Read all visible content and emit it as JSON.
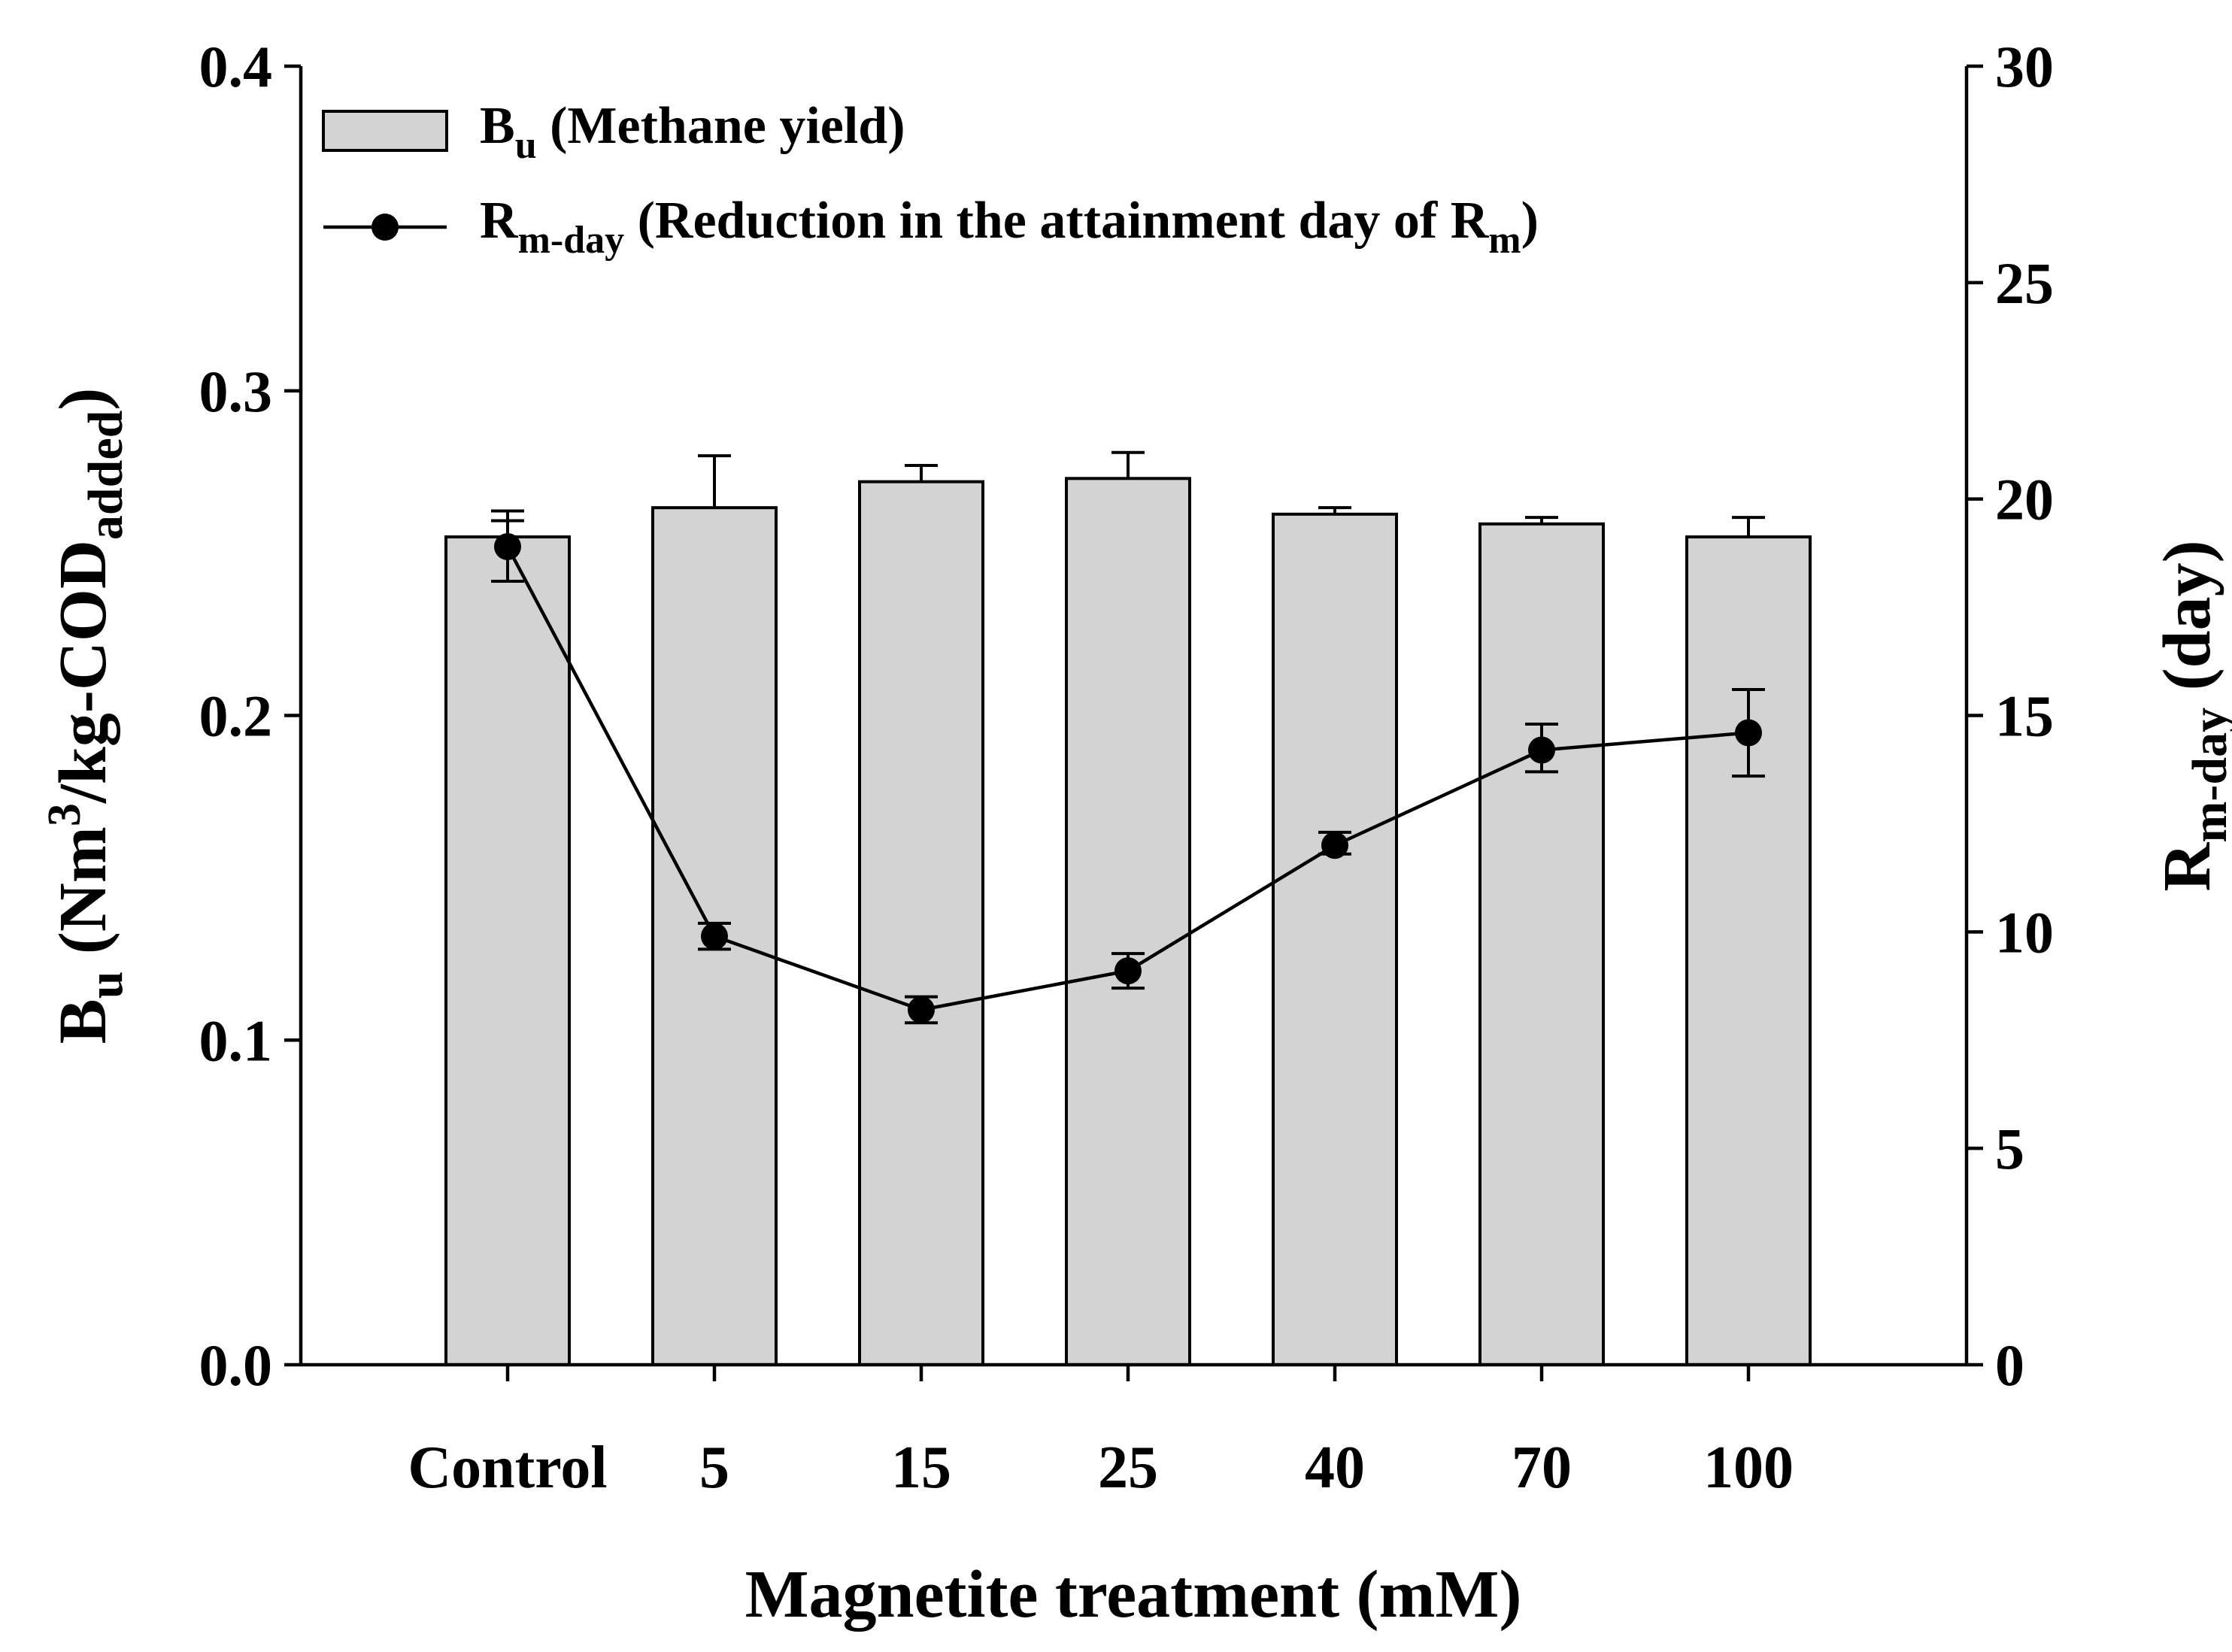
{
  "chart_data": {
    "type": "bar",
    "categories": [
      "Control",
      "5",
      "15",
      "25",
      "40",
      "70",
      "100"
    ],
    "xlabel": "Magnetite treatment (mM)",
    "ylabel": {
      "base": "B",
      "base_sub": "u",
      "pre": " (Nm",
      "sup": "3",
      "mid": "/kg-COD",
      "sub": "added",
      "post": ")"
    },
    "y2label": {
      "base": "R",
      "sub": "m-day",
      "post": " (day)"
    },
    "ylim": [
      0,
      0.4
    ],
    "y2lim": [
      0,
      30
    ],
    "yticks": [
      "0.0",
      "0.1",
      "0.2",
      "0.3",
      "0.4"
    ],
    "y2ticks": [
      "0",
      "5",
      "10",
      "15",
      "20",
      "25",
      "30"
    ],
    "grid": false,
    "legend_position": "top-left",
    "series": [
      {
        "name_parts": {
          "base": "B",
          "sub": "u",
          "post": " (Methane yield)"
        },
        "type": "bar",
        "axis": "left",
        "values": [
          0.255,
          0.264,
          0.272,
          0.273,
          0.262,
          0.259,
          0.255
        ],
        "error_upper": [
          0.263,
          0.28,
          0.277,
          0.281,
          0.264,
          0.261,
          0.261
        ],
        "error_lower": [
          0.255,
          0.264,
          0.272,
          0.273,
          0.262,
          0.259,
          0.255
        ],
        "fill": "#d3d3d3"
      },
      {
        "name_parts": {
          "base": "R",
          "sub": "m-day",
          "mid": " (Reduction in the attainment day of R",
          "sub2": "m",
          "post": ")"
        },
        "type": "line",
        "axis": "right",
        "values": [
          18.9,
          9.9,
          8.2,
          9.1,
          12.0,
          14.2,
          14.6
        ],
        "error_upper": [
          19.5,
          10.2,
          8.5,
          9.5,
          12.3,
          14.8,
          15.6
        ],
        "error_lower": [
          18.1,
          9.6,
          7.9,
          8.7,
          11.8,
          13.7,
          13.6
        ],
        "color": "#000000"
      }
    ]
  }
}
